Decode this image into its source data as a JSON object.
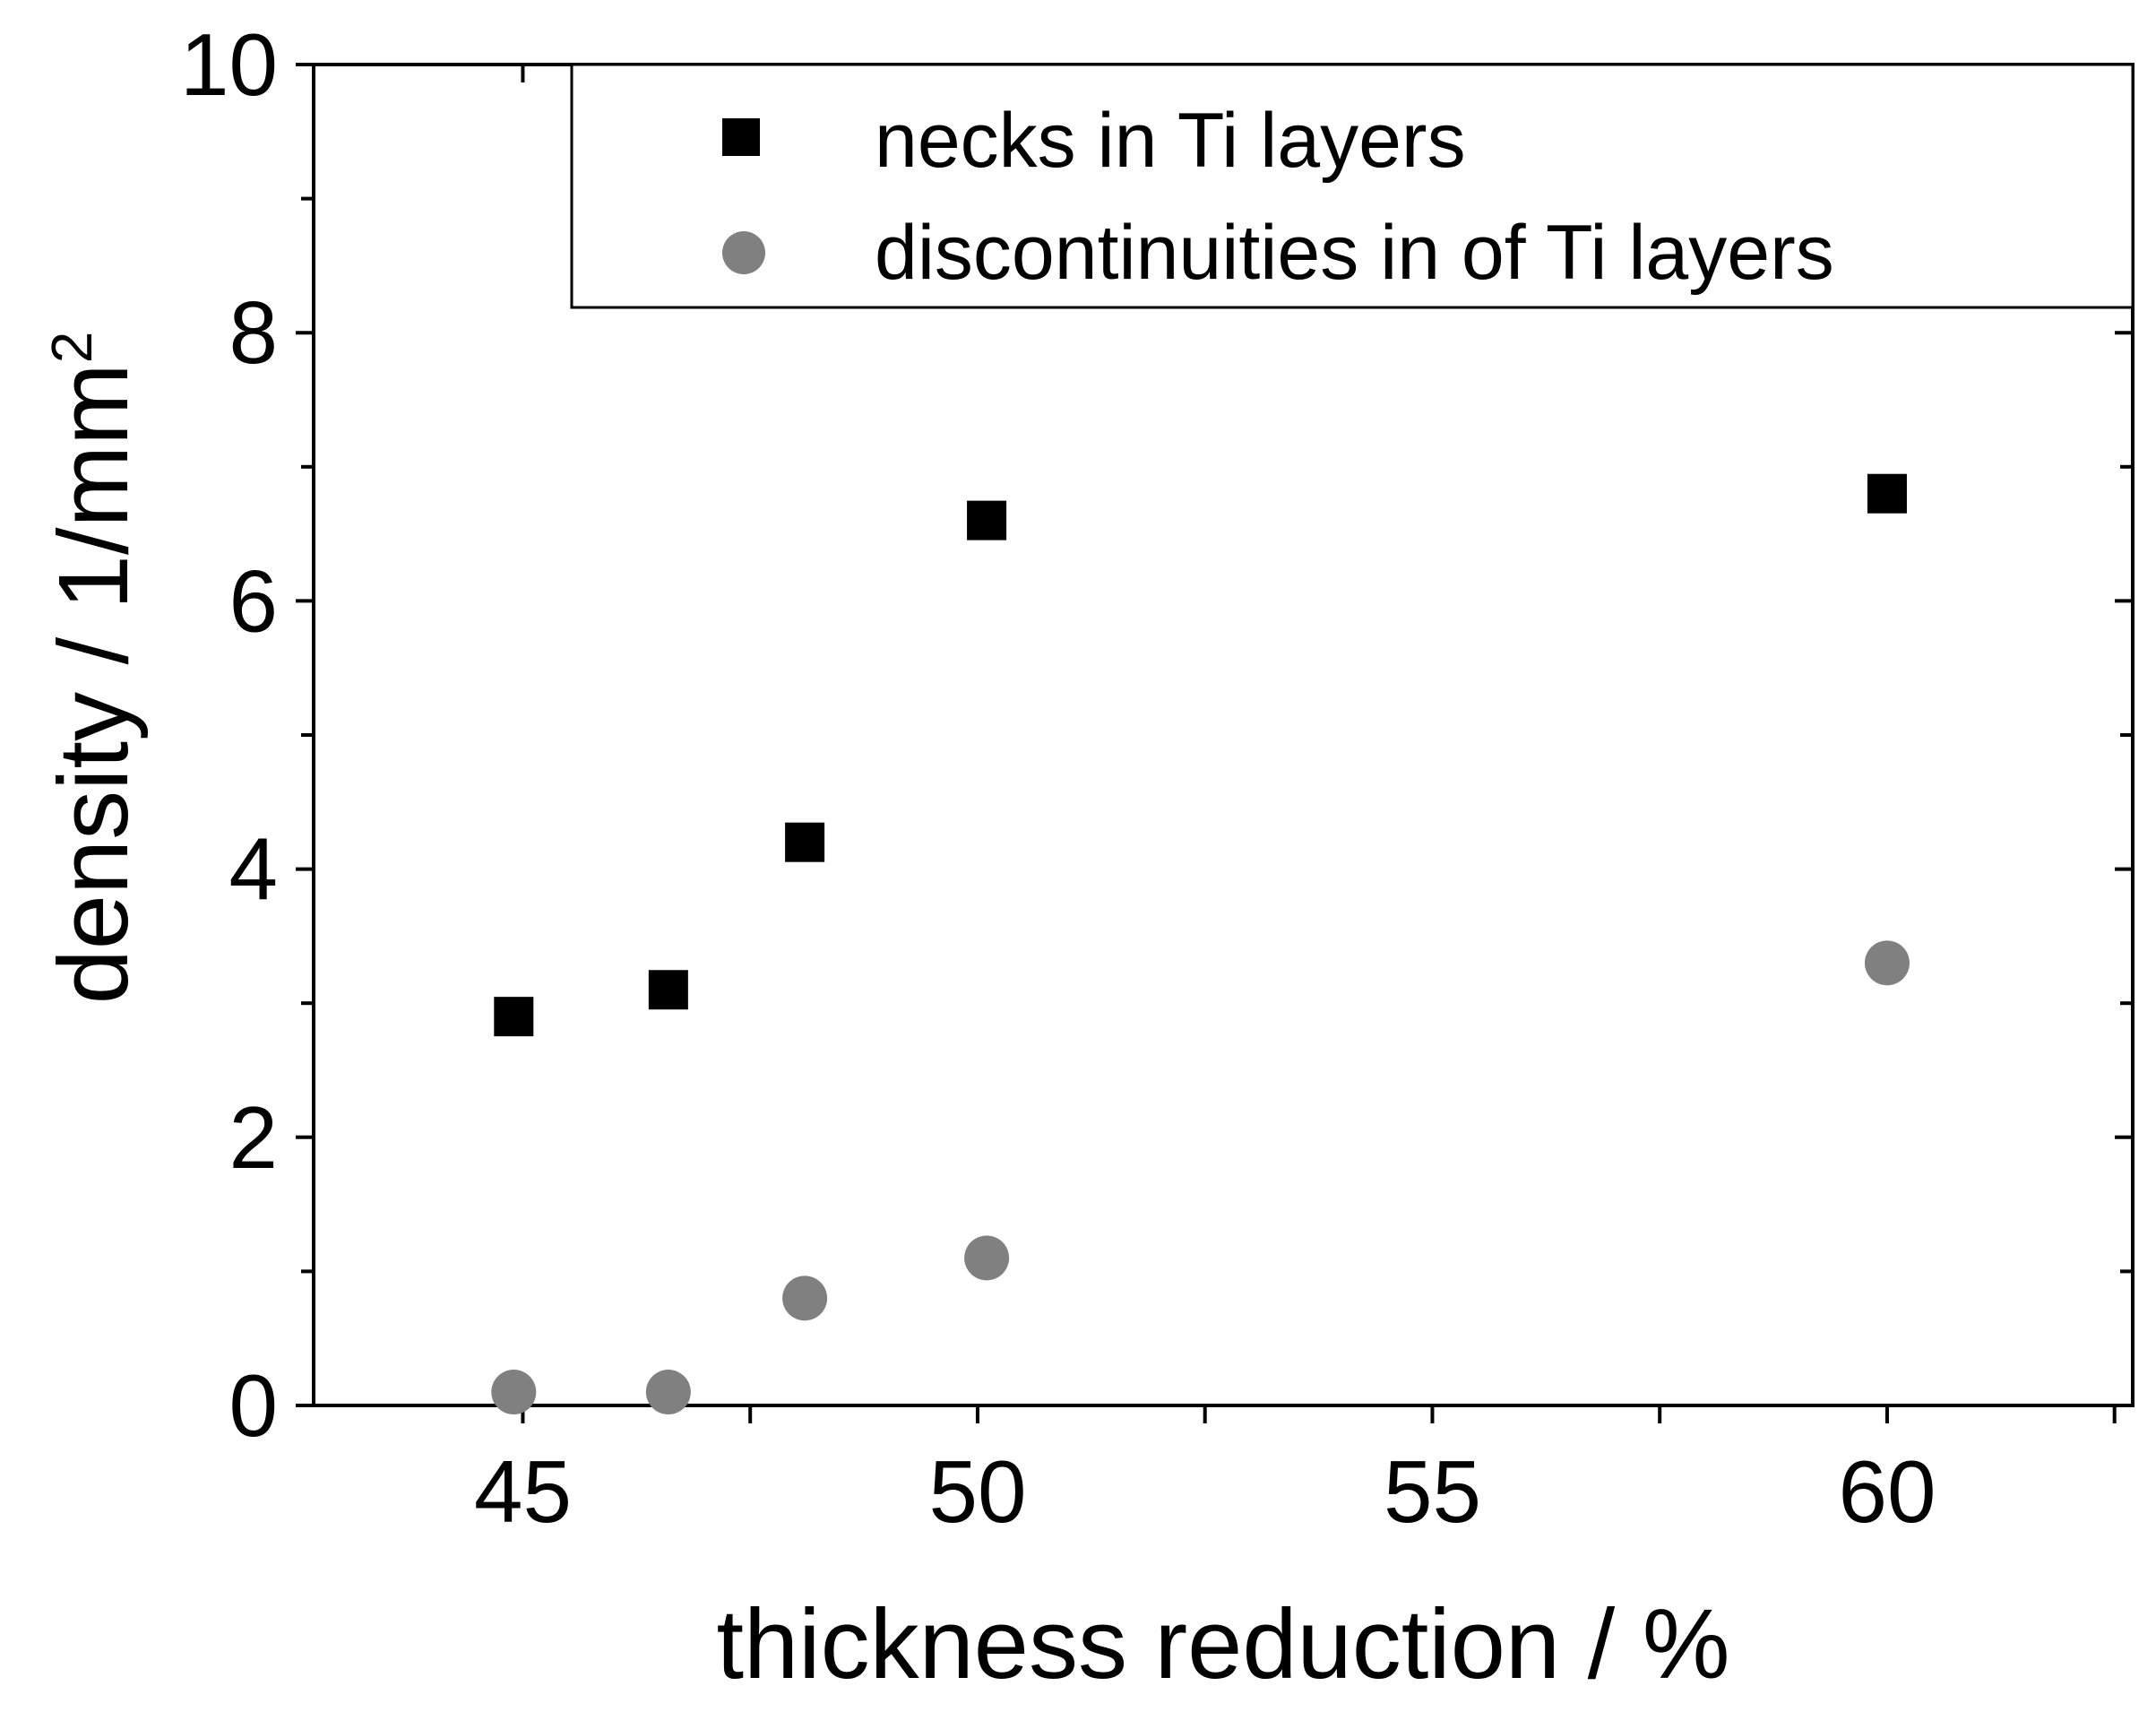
{
  "chart_data": {
    "type": "scatter",
    "title": "",
    "xlabel": "thickness reduction / %",
    "ylabel_main": "density / 1/mm",
    "ylabel_superscript": "2",
    "xlim": [
      42.7,
      62.7
    ],
    "ylim": [
      0,
      10
    ],
    "x_ticks": [
      "45",
      "50",
      "55",
      "60"
    ],
    "y_ticks": [
      "0",
      "2",
      "4",
      "6",
      "8",
      "10"
    ],
    "grid": false,
    "legend_position": "top-right",
    "series": [
      {
        "name": "necks in Ti layers",
        "marker": "square",
        "color": "#000000",
        "points": [
          {
            "x": 44.9,
            "y": 2.9
          },
          {
            "x": 46.6,
            "y": 3.1
          },
          {
            "x": 48.1,
            "y": 4.2
          },
          {
            "x": 50.1,
            "y": 6.6
          },
          {
            "x": 60.0,
            "y": 6.8
          }
        ]
      },
      {
        "name": "discontinuities in of Ti layers",
        "marker": "circle",
        "color": "#808080",
        "points": [
          {
            "x": 44.9,
            "y": 0.1
          },
          {
            "x": 46.6,
            "y": 0.1
          },
          {
            "x": 48.1,
            "y": 0.8
          },
          {
            "x": 50.1,
            "y": 1.1
          },
          {
            "x": 60.0,
            "y": 3.3
          }
        ]
      }
    ]
  }
}
